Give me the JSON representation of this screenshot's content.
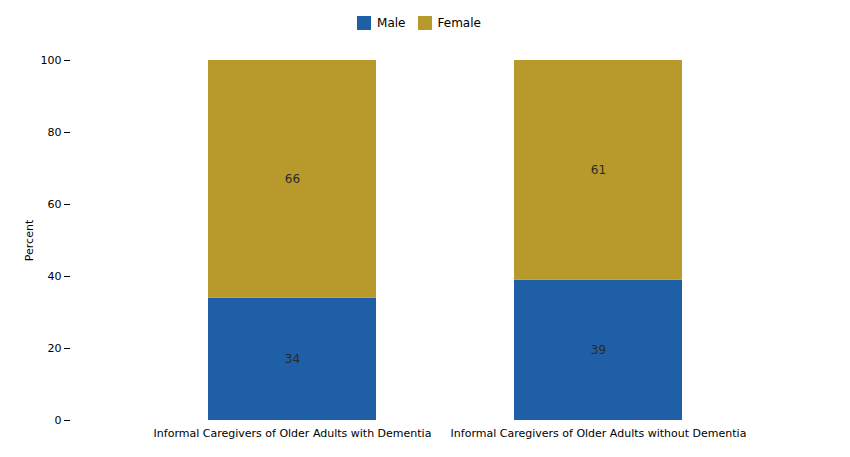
{
  "chart_data": {
    "type": "bar",
    "stacked": true,
    "categories": [
      "Informal Caregivers of Older Adults with Dementia",
      "Informal Caregivers of Older Adults without Dementia"
    ],
    "series": [
      {
        "name": "Male",
        "color": "#1F5FA6",
        "values": [
          34,
          39
        ]
      },
      {
        "name": "Female",
        "color": "#B8992C",
        "values": [
          66,
          61
        ]
      }
    ],
    "ylabel": "Percent",
    "ylim": [
      0,
      100
    ],
    "yticks": [
      0,
      20,
      40,
      60,
      80,
      100
    ],
    "data_labels": true,
    "legend": "top",
    "grid": false
  }
}
